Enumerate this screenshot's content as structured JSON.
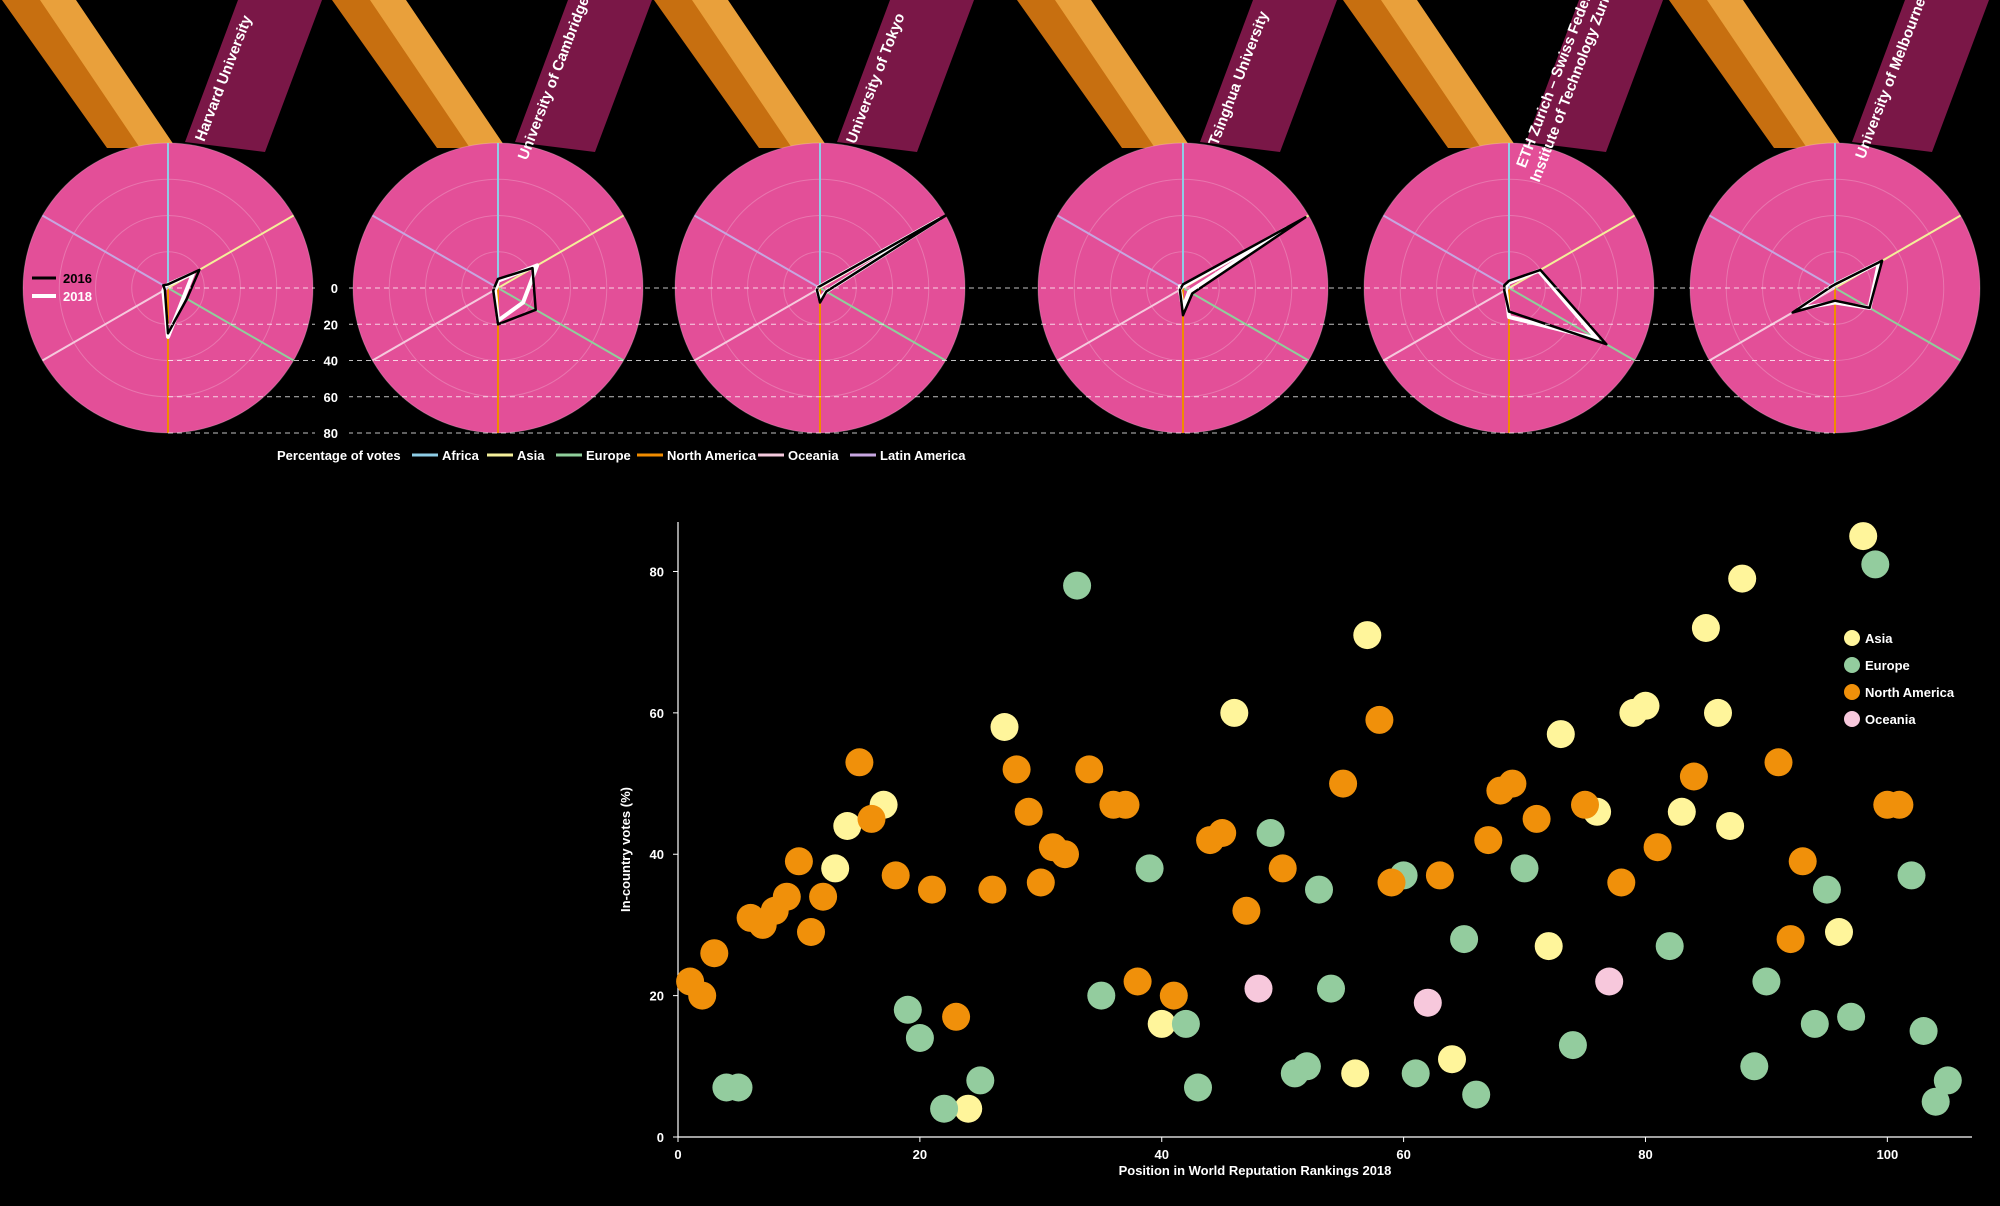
{
  "colors": {
    "background": "#000000",
    "medal": "#e34f98",
    "ribbon_dark": "#c76f10",
    "ribbon_light": "#e9a03b",
    "ribbon_band": "#7a1747",
    "line_2016": "#000000",
    "line_2018": "#ffffff",
    "Africa": "#8ecde6",
    "Asia": "#f4ef9a",
    "Europe": "#8fcf9b",
    "North America": "#f08c00",
    "Oceania": "#f5c9dd",
    "Latin America": "#c7a6e0",
    "dot_Asia": "#fff59b",
    "dot_Europe": "#93cc9e",
    "dot_North America": "#f0900a",
    "dot_Oceania": "#f7c8dc"
  },
  "chart_data": [
    {
      "type": "radar",
      "subtitle": "",
      "scale_label": "Percentage of votes",
      "scale_ticks": [
        "0",
        "20",
        "40",
        "60",
        "80"
      ],
      "scale_values": [
        0,
        20,
        40,
        60,
        80
      ],
      "radial_max": 80,
      "axes": [
        "Africa",
        "Asia",
        "Europe",
        "North America",
        "Oceania",
        "Latin America"
      ],
      "series_legend": [
        "2016",
        "2018"
      ],
      "universities": [
        {
          "name": "Harvard University",
          "v2016": [
            2,
            20,
            12,
            25,
            2,
            3
          ],
          "v2018": [
            2,
            16,
            10,
            27,
            3,
            2
          ]
        },
        {
          "name": "University of Cambridge",
          "v2016": [
            5,
            22,
            24,
            20,
            3,
            2
          ],
          "v2018": [
            4,
            25,
            16,
            18,
            2,
            1
          ]
        },
        {
          "name": "University of Tokyo",
          "v2016": [
            1,
            82,
            4,
            8,
            2,
            1
          ],
          "v2018": [
            1,
            76,
            4,
            6,
            2,
            1
          ]
        },
        {
          "name": "Tsinghua University",
          "v2016": [
            2,
            78,
            6,
            15,
            2,
            1
          ],
          "v2018": [
            1,
            66,
            4,
            11,
            2,
            2
          ]
        },
        {
          "name": "ETH Zurich – Swiss Federal\nInstitute of Technology Zurich",
          "v2016": [
            4,
            20,
            62,
            13,
            3,
            3
          ],
          "v2018": [
            3,
            19,
            56,
            16,
            2,
            2
          ]
        },
        {
          "name": "University of Melbourne",
          "v2016": [
            2,
            30,
            22,
            7,
            27,
            2
          ],
          "v2018": [
            2,
            28,
            22,
            8,
            23,
            2
          ]
        }
      ]
    },
    {
      "type": "scatter",
      "xlabel": "Position in World Reputation Rankings 2018",
      "ylabel": "In-country votes (%)",
      "xlim": [
        0,
        107
      ],
      "ylim": [
        0,
        87
      ],
      "xticks": [
        0,
        20,
        40,
        60,
        80,
        100
      ],
      "yticks": [
        0,
        20,
        40,
        60,
        80
      ],
      "legend": [
        "Asia",
        "Europe",
        "North America",
        "Oceania"
      ],
      "series": [
        {
          "name": "Asia",
          "points": [
            [
              13,
              38
            ],
            [
              14,
              44
            ],
            [
              17,
              47
            ],
            [
              24,
              4
            ],
            [
              27,
              58
            ],
            [
              40,
              16
            ],
            [
              46,
              60
            ],
            [
              56,
              9
            ],
            [
              57,
              71
            ],
            [
              64,
              11
            ],
            [
              72,
              27
            ],
            [
              73,
              57
            ],
            [
              76,
              46
            ],
            [
              79,
              60
            ],
            [
              80,
              61
            ],
            [
              83,
              46
            ],
            [
              85,
              72
            ],
            [
              86,
              60
            ],
            [
              87,
              44
            ],
            [
              88,
              79
            ],
            [
              96,
              29
            ],
            [
              98,
              85
            ]
          ]
        },
        {
          "name": "Europe",
          "points": [
            [
              4,
              7
            ],
            [
              5,
              7
            ],
            [
              19,
              18
            ],
            [
              20,
              14
            ],
            [
              22,
              4
            ],
            [
              25,
              8
            ],
            [
              33,
              78
            ],
            [
              35,
              20
            ],
            [
              39,
              38
            ],
            [
              42,
              16
            ],
            [
              43,
              7
            ],
            [
              49,
              43
            ],
            [
              51,
              9
            ],
            [
              52,
              10
            ],
            [
              53,
              35
            ],
            [
              54,
              21
            ],
            [
              60,
              37
            ],
            [
              61,
              9
            ],
            [
              65,
              28
            ],
            [
              66,
              6
            ],
            [
              70,
              38
            ],
            [
              74,
              13
            ],
            [
              82,
              27
            ],
            [
              89,
              10
            ],
            [
              90,
              22
            ],
            [
              94,
              16
            ],
            [
              95,
              35
            ],
            [
              97,
              17
            ],
            [
              99,
              81
            ],
            [
              102,
              37
            ],
            [
              103,
              15
            ],
            [
              104,
              5
            ],
            [
              105,
              8
            ]
          ]
        },
        {
          "name": "North America",
          "points": [
            [
              1,
              22
            ],
            [
              2,
              20
            ],
            [
              3,
              26
            ],
            [
              6,
              31
            ],
            [
              7,
              30
            ],
            [
              8,
              32
            ],
            [
              9,
              34
            ],
            [
              10,
              39
            ],
            [
              11,
              29
            ],
            [
              12,
              34
            ],
            [
              15,
              53
            ],
            [
              16,
              45
            ],
            [
              18,
              37
            ],
            [
              21,
              35
            ],
            [
              23,
              17
            ],
            [
              26,
              35
            ],
            [
              28,
              52
            ],
            [
              29,
              46
            ],
            [
              30,
              36
            ],
            [
              31,
              41
            ],
            [
              32,
              40
            ],
            [
              34,
              52
            ],
            [
              36,
              47
            ],
            [
              37,
              47
            ],
            [
              38,
              22
            ],
            [
              41,
              20
            ],
            [
              44,
              42
            ],
            [
              45,
              43
            ],
            [
              47,
              32
            ],
            [
              50,
              38
            ],
            [
              55,
              50
            ],
            [
              58,
              59
            ],
            [
              59,
              36
            ],
            [
              63,
              37
            ],
            [
              67,
              42
            ],
            [
              68,
              49
            ],
            [
              69,
              50
            ],
            [
              71,
              45
            ],
            [
              75,
              47
            ],
            [
              78,
              36
            ],
            [
              81,
              41
            ],
            [
              84,
              51
            ],
            [
              91,
              53
            ],
            [
              92,
              28
            ],
            [
              93,
              39
            ],
            [
              100,
              47
            ],
            [
              101,
              47
            ]
          ]
        },
        {
          "name": "Oceania",
          "points": [
            [
              48,
              21
            ],
            [
              62,
              19
            ],
            [
              77,
              22
            ]
          ]
        }
      ]
    }
  ]
}
